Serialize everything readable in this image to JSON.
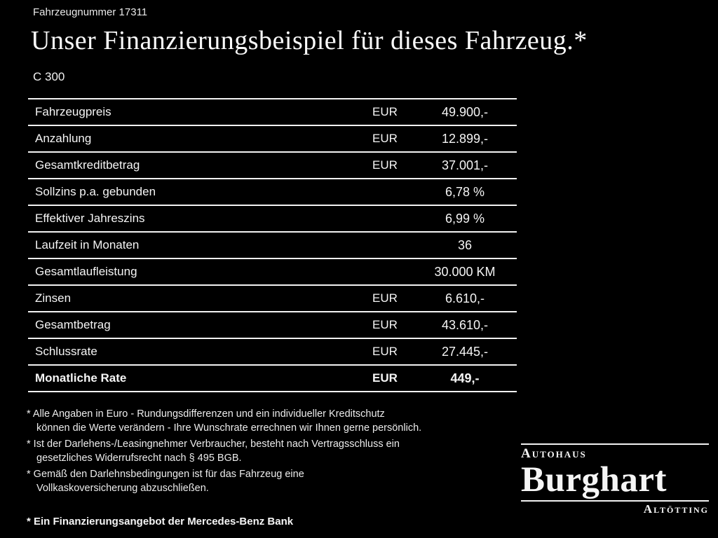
{
  "header": {
    "vehicle_number": "Fahrzeugnummer 17311",
    "title": "Unser Finanzierungsbeispiel für dieses Fahrzeug.*",
    "model": "C 300"
  },
  "table": {
    "rows": [
      {
        "label": "Fahrzeugpreis",
        "currency": "EUR",
        "value": "49.900,-",
        "bold": false
      },
      {
        "label": "Anzahlung",
        "currency": "EUR",
        "value": "12.899,-",
        "bold": false
      },
      {
        "label": "Gesamtkreditbetrag",
        "currency": "EUR",
        "value": "37.001,-",
        "bold": false
      },
      {
        "label": "Sollzins p.a. gebunden",
        "currency": "",
        "value": "6,78 %",
        "bold": false
      },
      {
        "label": "Effektiver Jahreszins",
        "currency": "",
        "value": "6,99 %",
        "bold": false
      },
      {
        "label": "Laufzeit in Monaten",
        "currency": "",
        "value": "36",
        "bold": false
      },
      {
        "label": "Gesamtlaufleistung",
        "currency": "",
        "value": "30.000 KM",
        "bold": false
      },
      {
        "label": "Zinsen",
        "currency": "EUR",
        "value": "6.610,-",
        "bold": false
      },
      {
        "label": "Gesamtbetrag",
        "currency": "EUR",
        "value": "43.610,-",
        "bold": false
      },
      {
        "label": "Schlussrate",
        "currency": "EUR",
        "value": "27.445,-",
        "bold": false
      },
      {
        "label": "Monatliche Rate",
        "currency": "EUR",
        "value": "449,-",
        "bold": true
      }
    ]
  },
  "footnotes": [
    "* Alle Angaben in Euro - Rundungsdifferenzen und ein individueller Kreditschutz\nkönnen die Werte verändern - Ihre Wunschrate errechnen wir Ihnen gerne persönlich.",
    "* Ist der Darlehens-/Leasingnehmer Verbraucher, besteht nach Vertragsschluss ein\ngesetzliches Widerrufsrecht nach § 495 BGB.",
    "* Gemäß den Darlehnsbedingungen ist für das Fahrzeug eine\nVollkaskoversicherung abzuschließen."
  ],
  "financing_note": "* Ein Finanzierungsangebot der Mercedes-Benz Bank",
  "dealer": {
    "prefix": "Autohaus",
    "name": "Burghart",
    "city": "Altötting"
  },
  "colors": {
    "background": "#000000",
    "text": "#f5f5f5",
    "rule": "#f2f2f2"
  }
}
